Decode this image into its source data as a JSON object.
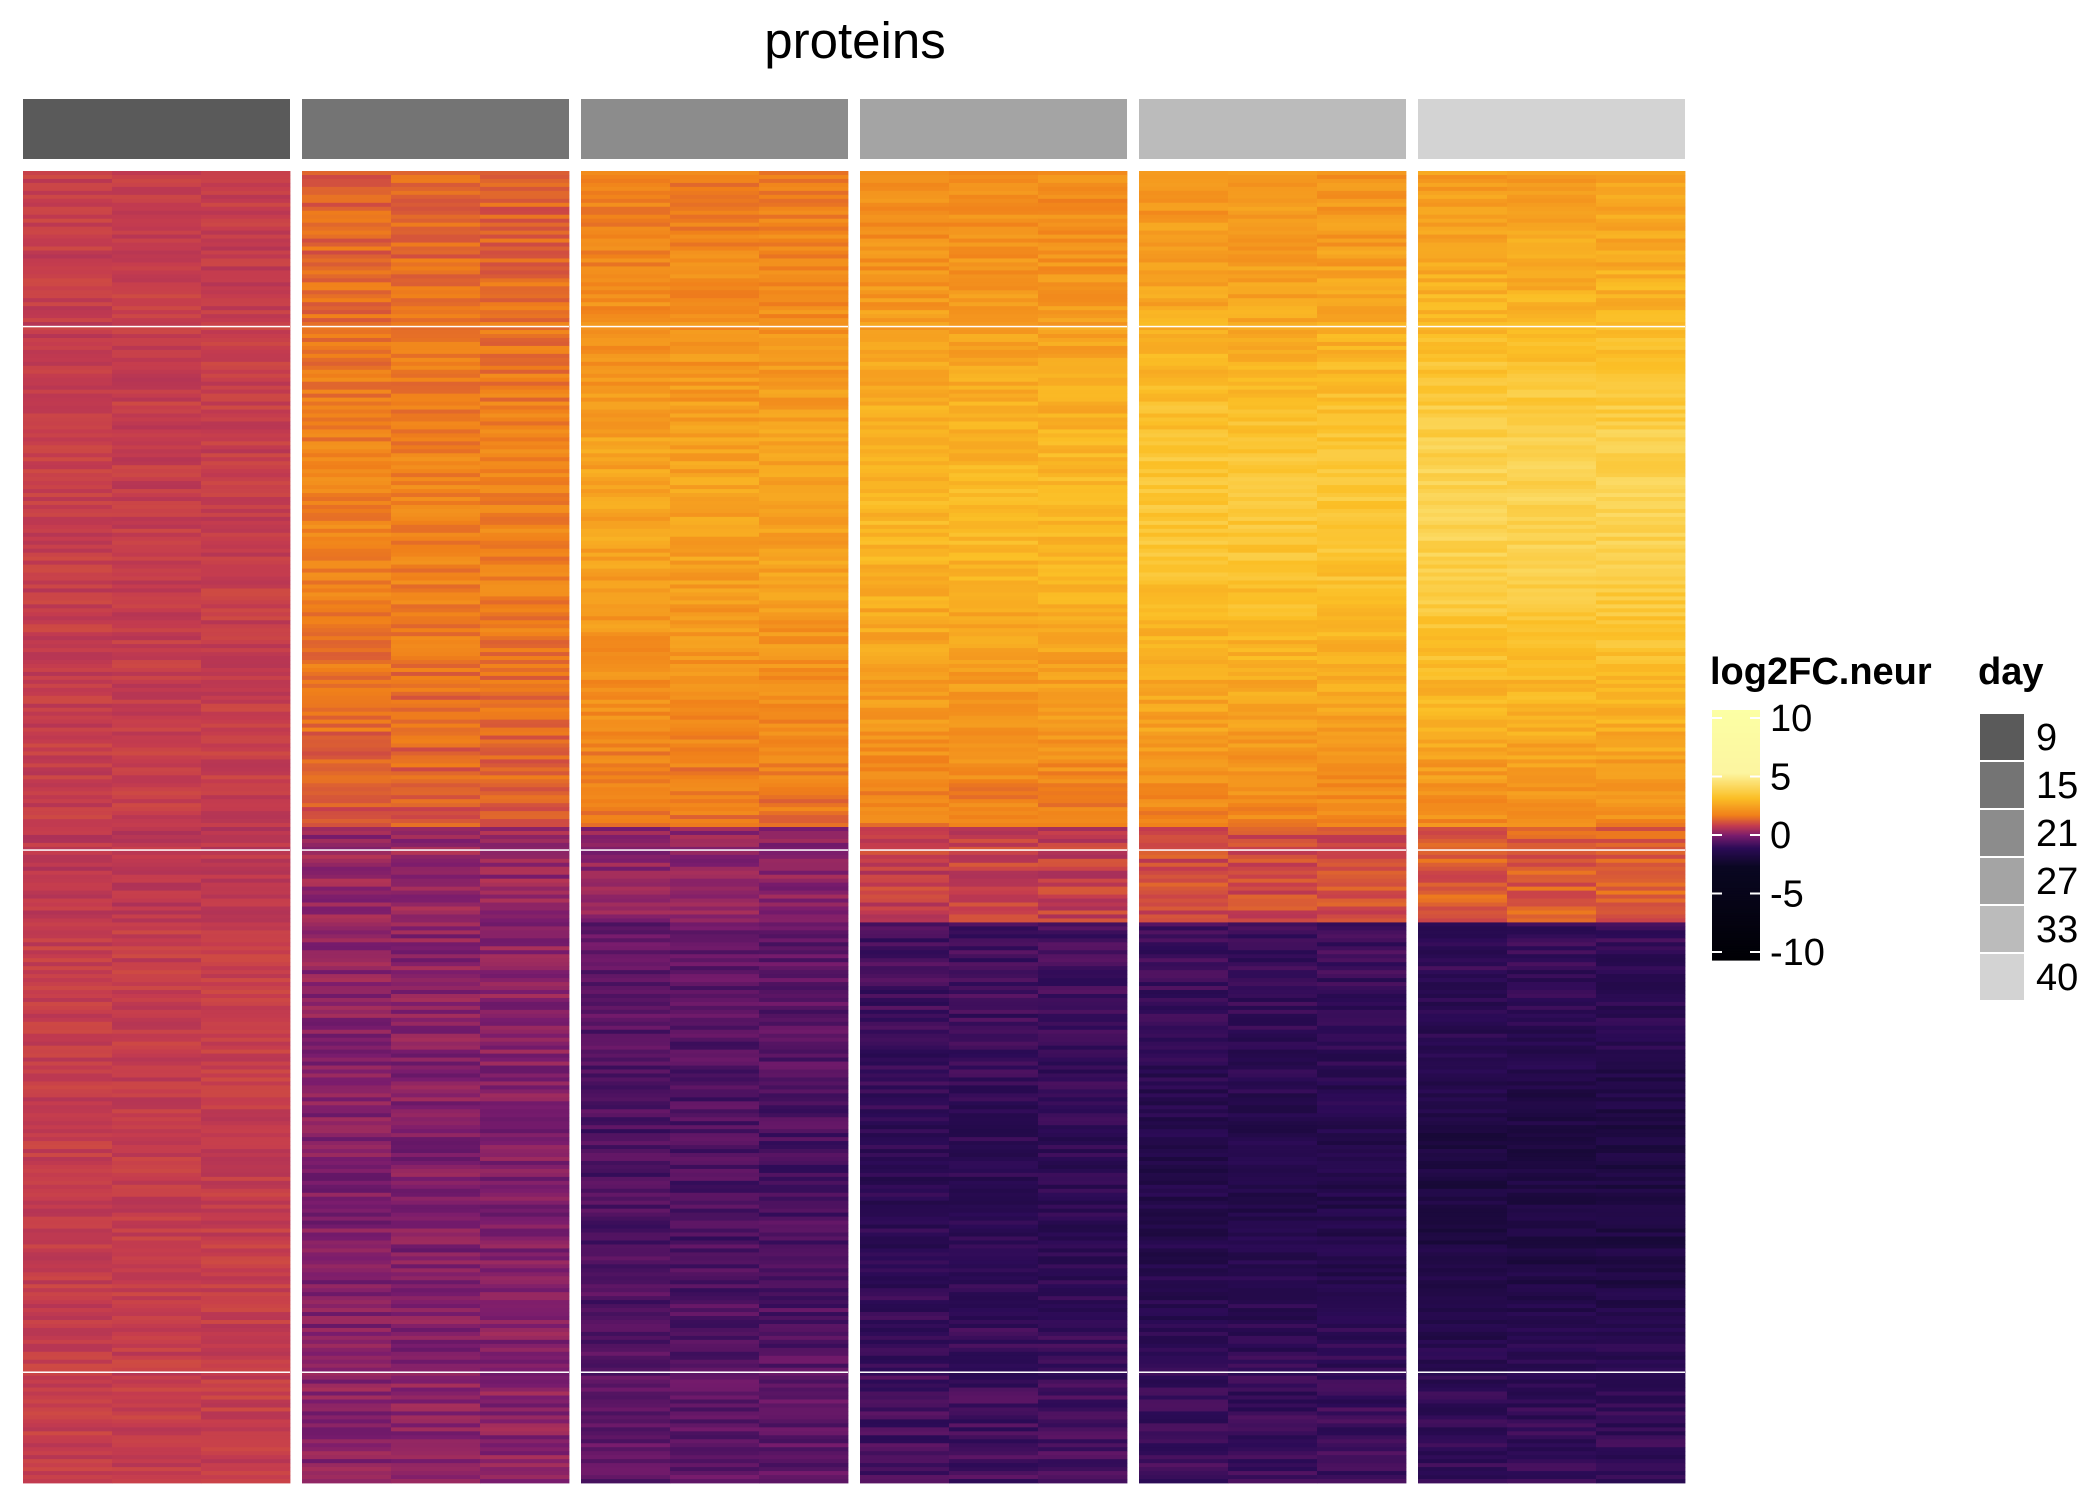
{
  "chart_data": {
    "type": "heatmap",
    "title": "proteins",
    "row_variable": "proteins (sorted rows; dense, values estimated from color)",
    "column_annotation": {
      "title": "day",
      "levels": [
        "9",
        "15",
        "21",
        "27",
        "33",
        "40"
      ],
      "colors": [
        "#5a5a5a",
        "#747474",
        "#8c8c8c",
        "#a4a4a4",
        "#bbbbbb",
        "#d3d3d3"
      ]
    },
    "columns_per_day": 3,
    "color_scale": {
      "title": "log2FC.neur",
      "ticks": [
        10,
        5,
        0,
        -5,
        -10
      ],
      "tick_labels": [
        "10",
        "5",
        "0",
        "-5",
        "-10"
      ],
      "range": [
        -10,
        10
      ],
      "stops": [
        {
          "value": -10,
          "color": "#000004"
        },
        {
          "value": -2.5,
          "color": "#0a0722"
        },
        {
          "value": -1,
          "color": "#2c0b57"
        },
        {
          "value": 0,
          "color": "#7a1c6d"
        },
        {
          "value": 0.8,
          "color": "#c53c4e"
        },
        {
          "value": 1.6,
          "color": "#f07f1a"
        },
        {
          "value": 3,
          "color": "#fbbf26"
        },
        {
          "value": 5,
          "color": "#fcf5a0"
        },
        {
          "value": 10,
          "color": "#fcffa4"
        }
      ]
    },
    "row_group_profiles": [
      {
        "group": "upper block (up-regulated)",
        "mean_log2fc_by_day": [
          0.8,
          1.2,
          1.6,
          1.8,
          2.0,
          2.2
        ]
      },
      {
        "group": "middle band",
        "mean_log2fc_by_day": [
          0.7,
          0.3,
          0.2,
          0.8,
          1.0,
          1.2
        ]
      },
      {
        "group": "lower block (down-regulated)",
        "mean_log2fc_by_day": [
          0.8,
          0.2,
          -0.3,
          -0.6,
          -0.7,
          -0.8
        ]
      }
    ]
  }
}
